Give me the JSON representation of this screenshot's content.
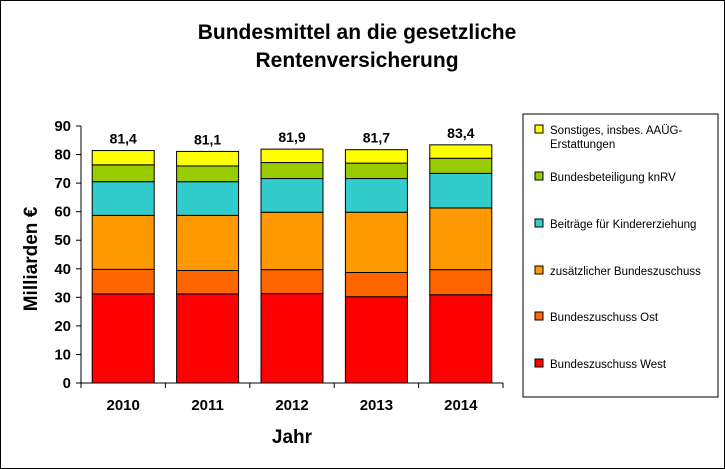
{
  "chart_data": {
    "type": "bar",
    "stacked": true,
    "title": "Bundesmittel an die gesetzliche Rentenversicherung",
    "title_lines": [
      "Bundesmittel an die gesetzliche",
      "Rentenversicherung"
    ],
    "xlabel": "Jahr",
    "ylabel": "Milliarden €",
    "ylim": [
      0,
      90
    ],
    "yticks": [
      0,
      10,
      20,
      30,
      40,
      50,
      60,
      70,
      80,
      90
    ],
    "grid": false,
    "legend_position": "right",
    "categories": [
      "2010",
      "2011",
      "2012",
      "2013",
      "2014"
    ],
    "totals": [
      "81,4",
      "81,1",
      "81,9",
      "81,7",
      "83,4"
    ],
    "series": [
      {
        "name": "Bundeszuschuss West",
        "color": "#ff0000",
        "values": [
          31.2,
          31.2,
          31.3,
          30.2,
          30.9
        ]
      },
      {
        "name": "Bundeszuschuss Ost",
        "color": "#ff6600",
        "values": [
          8.6,
          8.2,
          8.4,
          8.5,
          8.8
        ]
      },
      {
        "name": "zusätzlicher Bundeszuschuss",
        "color": "#ff9900",
        "values": [
          18.9,
          19.3,
          20.1,
          21.1,
          21.6
        ]
      },
      {
        "name": "Beiträge für Kindererziehung",
        "color": "#33cccc",
        "values": [
          11.8,
          11.8,
          11.8,
          11.8,
          12.1
        ]
      },
      {
        "name": "Bundesbeteiligung knRV",
        "color": "#99cc00",
        "values": [
          5.9,
          5.5,
          5.6,
          5.4,
          5.3
        ]
      },
      {
        "name": "Sonstiges, insbes. AAÜG-Erstattungen",
        "name_lines": [
          "Sonstiges, insbes. AAÜG-",
          "Erstattungen"
        ],
        "color": "#ffff00",
        "values": [
          5.0,
          5.1,
          4.7,
          4.7,
          4.7
        ]
      }
    ]
  }
}
